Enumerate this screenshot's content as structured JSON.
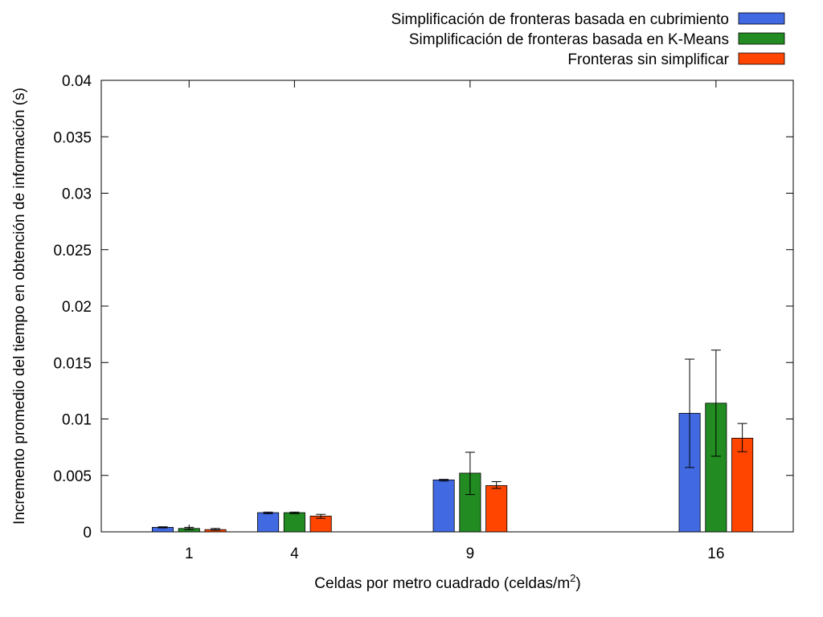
{
  "chart_data": {
    "type": "bar",
    "title": "",
    "xlabel": "Celdas por metro cuadrado (celdas/m",
    "xlabel_sup": "2",
    "xlabel_suffix": ")",
    "ylabel": "Incremento promedio del tiempo en obtención de información (s)",
    "ylim": [
      0,
      0.04
    ],
    "yticks": [
      "0",
      "0.005",
      "0.01",
      "0.015",
      "0.02",
      "0.025",
      "0.03",
      "0.035",
      "0.04"
    ],
    "x_values": [
      1,
      4,
      9,
      16
    ],
    "categories": [
      "1",
      "4",
      "9",
      "16"
    ],
    "xlim": [
      -1.5,
      18.2
    ],
    "grid": false,
    "legend_position": "top-right, outside plot",
    "series": [
      {
        "name": "Simplificación de fronteras basada en cubrimiento",
        "color": "#4169e1",
        "values": [
          0.0004,
          0.0017,
          0.0046,
          0.0105
        ],
        "error_low": [
          0.00035,
          0.0016,
          0.0045,
          0.0057
        ],
        "error_high": [
          0.00045,
          0.00175,
          0.00465,
          0.0153
        ]
      },
      {
        "name": "Simplificación de fronteras basada en K-Means",
        "color": "#228b22",
        "values": [
          0.0003,
          0.0017,
          0.0052,
          0.0114
        ],
        "error_low": [
          0.0002,
          0.0016,
          0.0033,
          0.0067
        ],
        "error_high": [
          0.0004,
          0.00175,
          0.00705,
          0.0161
        ]
      },
      {
        "name": "Fronteras sin simplificar",
        "color": "#ff4500",
        "values": [
          0.0002,
          0.0014,
          0.0041,
          0.0083
        ],
        "error_low": [
          0.00015,
          0.0012,
          0.00385,
          0.0071
        ],
        "error_high": [
          0.0003,
          0.00155,
          0.00445,
          0.0096
        ]
      }
    ]
  }
}
